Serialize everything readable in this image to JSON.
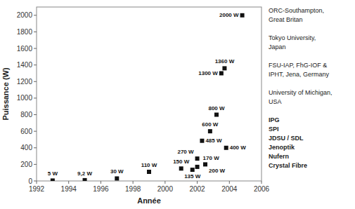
{
  "chart_data": {
    "type": "scatter",
    "x": [
      1993,
      1995,
      1997,
      1999,
      2001,
      2001.7,
      2002,
      2002,
      2002.5,
      2002.3,
      2002.8,
      2003.8,
      2003.2,
      2003.5,
      2003.7,
      2004.8
    ],
    "values": [
      5,
      9.2,
      30,
      110,
      150,
      135,
      170,
      270,
      200,
      485,
      600,
      400,
      800,
      1300,
      1360,
      2000
    ],
    "value_labels": [
      "5 W",
      "9,2 W",
      "30 W",
      "110 W",
      "150 W",
      "135 W",
      "170 W",
      "270 W",
      "200 W",
      "485 W",
      "600 W",
      "400 W",
      "800 W",
      "1300 W",
      "1360 W",
      "2000 W"
    ],
    "data_labels": true,
    "color": "#111111",
    "marker": "square",
    "xlabel": "Année",
    "ylabel": "Puissance (W)",
    "xlim": [
      1992,
      2006
    ],
    "ylim": [
      0,
      2100
    ],
    "xticks": [
      1992,
      1994,
      1996,
      1998,
      2000,
      2002,
      2004,
      2006
    ],
    "yticks": [
      0,
      200,
      400,
      600,
      800,
      1000,
      1200,
      1400,
      1600,
      1800,
      2000
    ],
    "grid": false,
    "annotations": [
      [
        "ORC-Southampton,",
        "Great Britan"
      ],
      [
        "Tokyo University,",
        "Japan"
      ],
      [
        "FSU-IAP, FhG-IOF &",
        "IPHT, Jena, Germany"
      ],
      [
        "University of Michigan,",
        "USA"
      ],
      [
        "IPG",
        "SPI",
        "JDSU / SDL",
        "Jenoptik",
        "Nufern",
        "Crystal Fibre"
      ]
    ]
  }
}
